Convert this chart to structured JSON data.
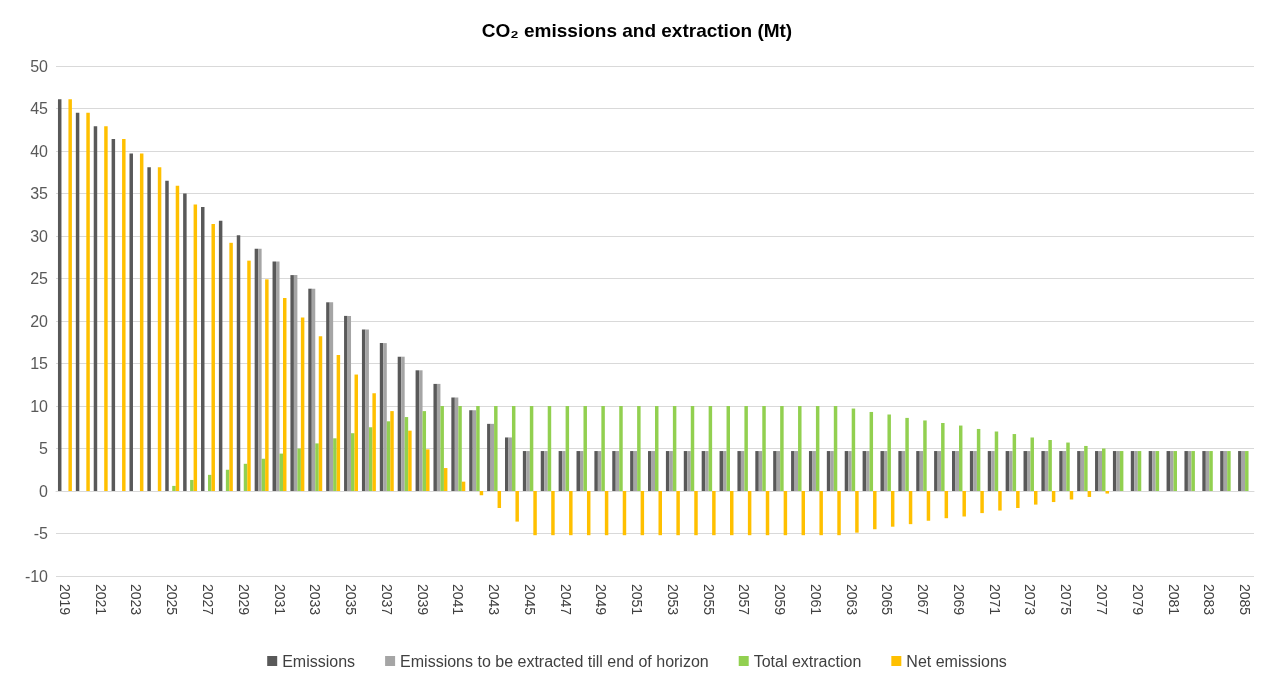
{
  "chart_data": {
    "type": "bar",
    "title": "CO₂ emissions and extraction (Mt)",
    "categories": [
      "2019",
      null,
      "2021",
      null,
      "2023",
      null,
      "2025",
      null,
      "2027",
      null,
      "2029",
      null,
      "2031",
      null,
      "2033",
      null,
      "2035",
      null,
      "2037",
      null,
      "2039",
      null,
      "2041",
      null,
      "2043",
      null,
      "2045",
      null,
      "2047",
      null,
      "2049",
      null,
      "2051",
      null,
      "2053",
      null,
      "2055",
      null,
      "2057",
      null,
      "2059",
      null,
      "2061",
      null,
      "2063",
      null,
      "2065",
      null,
      "2067",
      null,
      "2069",
      null,
      "2071",
      null,
      "2073",
      null,
      "2075",
      null,
      "2077",
      null,
      "2079",
      null,
      "2081",
      null,
      "2083",
      null,
      "2085"
    ],
    "series": [
      {
        "name": "Emissions",
        "color": "#595959",
        "values": [
          46.1,
          44.5,
          42.9,
          41.4,
          39.7,
          38.1,
          36.5,
          35.0,
          33.4,
          31.8,
          30.1,
          28.5,
          27.0,
          25.4,
          23.8,
          22.2,
          20.6,
          19.0,
          17.4,
          15.8,
          14.2,
          12.6,
          11.0,
          9.5,
          7.9,
          6.3,
          4.7,
          4.7,
          4.7,
          4.7,
          4.7,
          4.7,
          4.7,
          4.7,
          4.7,
          4.7,
          4.7,
          4.7,
          4.7,
          4.7,
          4.7,
          4.7,
          4.7,
          4.7,
          4.7,
          4.7,
          4.7,
          4.7,
          4.7,
          4.7,
          4.7,
          4.7,
          4.7,
          4.7,
          4.7,
          4.7,
          4.7,
          4.7,
          4.7,
          4.7,
          4.7,
          4.7,
          4.7,
          4.7,
          4.7,
          4.7,
          4.7
        ]
      },
      {
        "name": "Emissions to be extracted till end of horizon",
        "color": "#a5a5a5",
        "values": [
          null,
          null,
          null,
          null,
          null,
          null,
          null,
          null,
          null,
          null,
          null,
          28.5,
          27.0,
          25.4,
          23.8,
          22.2,
          20.6,
          19.0,
          17.4,
          15.8,
          14.2,
          12.6,
          11.0,
          9.5,
          7.9,
          6.3,
          4.7,
          4.7,
          4.7,
          4.7,
          4.7,
          4.7,
          4.7,
          4.7,
          4.7,
          4.7,
          4.7,
          4.7,
          4.7,
          4.7,
          4.7,
          4.7,
          4.7,
          4.7,
          4.7,
          4.7,
          4.7,
          4.7,
          4.7,
          4.7,
          4.7,
          4.7,
          4.7,
          4.7,
          4.7,
          4.7,
          4.7,
          4.7,
          4.7,
          4.7,
          4.7,
          4.7,
          4.7,
          4.7,
          4.7,
          4.7,
          4.7
        ]
      },
      {
        "name": "Total extraction",
        "color": "#92d050",
        "values": [
          null,
          null,
          null,
          null,
          null,
          null,
          0.6,
          1.3,
          1.9,
          2.5,
          3.2,
          3.8,
          4.4,
          5.0,
          5.6,
          6.2,
          6.8,
          7.5,
          8.2,
          8.7,
          9.4,
          10.0,
          10.0,
          10.0,
          10.0,
          10.0,
          10.0,
          10.0,
          10.0,
          10.0,
          10.0,
          10.0,
          10.0,
          10.0,
          10.0,
          10.0,
          10.0,
          10.0,
          10.0,
          10.0,
          10.0,
          10.0,
          10.0,
          10.0,
          9.7,
          9.3,
          9.0,
          8.6,
          8.3,
          8.0,
          7.7,
          7.3,
          7.0,
          6.7,
          6.3,
          6.0,
          5.7,
          5.3,
          5.0,
          4.7,
          4.7,
          4.7,
          4.7,
          4.7,
          4.7,
          4.7,
          4.7
        ]
      },
      {
        "name": "Net emissions",
        "color": "#ffc000",
        "values": [
          46.1,
          44.5,
          42.9,
          41.4,
          39.7,
          38.1,
          35.9,
          33.7,
          31.4,
          29.2,
          27.1,
          24.9,
          22.7,
          20.4,
          18.2,
          16.0,
          13.7,
          11.5,
          9.4,
          7.1,
          4.9,
          2.7,
          1.1,
          -0.5,
          -2.0,
          -3.6,
          -5.2,
          -5.2,
          -5.2,
          -5.2,
          -5.2,
          -5.2,
          -5.2,
          -5.2,
          -5.2,
          -5.2,
          -5.2,
          -5.2,
          -5.2,
          -5.2,
          -5.2,
          -5.2,
          -5.2,
          -5.2,
          -4.9,
          -4.5,
          -4.2,
          -3.9,
          -3.5,
          -3.2,
          -3.0,
          -2.6,
          -2.3,
          -2.0,
          -1.6,
          -1.3,
          -1.0,
          -0.7,
          -0.3,
          null,
          null,
          null,
          null,
          null,
          null,
          null,
          null
        ]
      }
    ],
    "ylim": [
      -10,
      50
    ],
    "yticks": [
      -10,
      -5,
      0,
      5,
      10,
      15,
      20,
      25,
      30,
      35,
      40,
      45,
      50
    ],
    "grid": "y",
    "legend": "bottom"
  }
}
